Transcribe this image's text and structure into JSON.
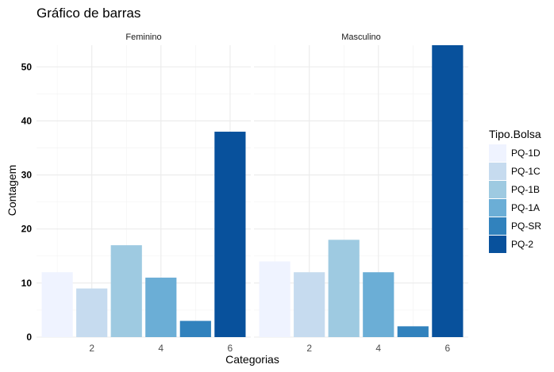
{
  "chart_data": {
    "type": "bar",
    "title": "Gráfico de barras",
    "xlabel": "Categorias",
    "ylabel": "Contagem",
    "x_ticks": [
      2,
      4,
      6
    ],
    "y_ticks": [
      0,
      10,
      20,
      30,
      40,
      50
    ],
    "xlim": [
      0.4,
      6.6
    ],
    "ylim": [
      0,
      54
    ],
    "grid": true,
    "legend": {
      "title": "Tipo.Bolsa",
      "position": "right",
      "entries": [
        "PQ-1D",
        "PQ-1C",
        "PQ-1B",
        "PQ-1A",
        "PQ-SR",
        "PQ-2"
      ]
    },
    "colors": [
      "#eff3ff",
      "#c6dbef",
      "#9ecae1",
      "#6baed6",
      "#3182bd",
      "#08519c"
    ],
    "panels": [
      {
        "name": "Feminino",
        "bars": [
          {
            "x": 1,
            "value": 12,
            "series": "PQ-1D"
          },
          {
            "x": 2,
            "value": 9,
            "series": "PQ-1C"
          },
          {
            "x": 3,
            "value": 17,
            "series": "PQ-1B"
          },
          {
            "x": 4,
            "value": 11,
            "series": "PQ-1A"
          },
          {
            "x": 5,
            "value": 3,
            "series": "PQ-SR"
          },
          {
            "x": 6,
            "value": 38,
            "series": "PQ-2"
          }
        ]
      },
      {
        "name": "Masculino",
        "bars": [
          {
            "x": 1,
            "value": 14,
            "series": "PQ-1D"
          },
          {
            "x": 2,
            "value": 12,
            "series": "PQ-1C"
          },
          {
            "x": 3,
            "value": 18,
            "series": "PQ-1B"
          },
          {
            "x": 4,
            "value": 12,
            "series": "PQ-1A"
          },
          {
            "x": 5,
            "value": 2,
            "series": "PQ-SR"
          },
          {
            "x": 6,
            "value": 54,
            "series": "PQ-2"
          }
        ]
      }
    ]
  }
}
